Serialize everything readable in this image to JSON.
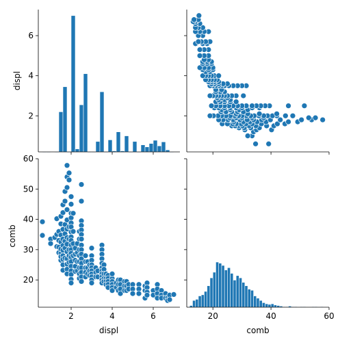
{
  "chart_data": {
    "type": "scatter",
    "kind": "pairplot",
    "variables": [
      "displ",
      "comb"
    ],
    "axis_labels": {
      "displ": "displ",
      "comb": "comb"
    },
    "color": "#1f77b4",
    "grid": false,
    "legend": "none",
    "displ_ticks": [
      2,
      4,
      6
    ],
    "displ_y_ticks": [
      2,
      4,
      6
    ],
    "comb_ticks": [
      20,
      40,
      60
    ],
    "comb_y_ticks": [
      20,
      30,
      40,
      50,
      60
    ],
    "displ_range": [
      0.4,
      7.3
    ],
    "displ_y_range": [
      0.2,
      7.3
    ],
    "comb_range": [
      11,
      60
    ],
    "comb_y_range": [
      11,
      60
    ],
    "displ_hist": {
      "bin_edges": [
        0.6,
        0.8,
        1.0,
        1.2,
        1.4,
        1.6,
        1.8,
        2.0,
        2.2,
        2.4,
        2.6,
        2.8,
        3.0,
        3.2,
        3.4,
        3.6,
        3.8,
        4.0,
        4.2,
        4.4,
        4.6,
        4.8,
        5.0,
        5.2,
        5.4,
        5.6,
        5.8,
        6.0,
        6.2,
        6.4,
        6.6,
        6.8,
        7.0
      ],
      "values": [
        0.05,
        0.08,
        0.0,
        0.05,
        2.2,
        3.45,
        0.08,
        7.0,
        0.35,
        2.55,
        4.1,
        0.08,
        0.08,
        0.72,
        3.2,
        0.08,
        0.8,
        0.25,
        1.2,
        0.25,
        1.0,
        0.1,
        0.72,
        0.1,
        0.55,
        0.45,
        0.62,
        0.78,
        0.5,
        0.7,
        0.3,
        0.05
      ]
    },
    "comb_hist": {
      "bin_edges": [
        12,
        13,
        14,
        15,
        16,
        17,
        18,
        19,
        20,
        21,
        22,
        23,
        24,
        25,
        26,
        27,
        28,
        29,
        30,
        31,
        32,
        33,
        34,
        35,
        36,
        37,
        38,
        39,
        40,
        41,
        42,
        43,
        44,
        45,
        46,
        47,
        48,
        49,
        50,
        51,
        52,
        53,
        54,
        55,
        56,
        57,
        58
      ],
      "values": [
        3,
        12,
        14,
        20,
        22,
        28,
        38,
        52,
        62,
        80,
        78,
        74,
        66,
        70,
        60,
        48,
        56,
        52,
        44,
        38,
        32,
        30,
        20,
        16,
        12,
        8,
        6,
        5,
        6,
        4,
        3,
        2,
        1,
        1,
        2,
        1,
        1,
        0,
        1,
        1,
        0,
        0,
        1,
        1,
        0,
        1
      ],
      "count_max": 80
    },
    "points": [
      [
        0.6,
        39.2
      ],
      [
        0.6,
        34.7
      ],
      [
        1.0,
        33.5
      ],
      [
        1.0,
        32.0
      ],
      [
        1.2,
        34.0
      ],
      [
        1.3,
        35.0
      ],
      [
        1.3,
        40.2
      ],
      [
        1.3,
        31.0
      ],
      [
        1.4,
        36.0
      ],
      [
        1.4,
        33.0
      ],
      [
        1.4,
        30.8
      ],
      [
        1.4,
        29.0
      ],
      [
        1.5,
        38.5
      ],
      [
        1.5,
        41.0
      ],
      [
        1.5,
        34.8
      ],
      [
        1.5,
        32.5
      ],
      [
        1.5,
        28.8
      ],
      [
        1.5,
        30.2
      ],
      [
        1.5,
        26.5
      ],
      [
        1.5,
        27.7
      ],
      [
        1.6,
        42.2
      ],
      [
        1.6,
        44.8
      ],
      [
        1.6,
        36.7
      ],
      [
        1.6,
        33.5
      ],
      [
        1.6,
        31.4
      ],
      [
        1.6,
        29.8
      ],
      [
        1.6,
        28.0
      ],
      [
        1.6,
        26.8
      ],
      [
        1.6,
        25.0
      ],
      [
        1.6,
        23.2
      ],
      [
        1.7,
        46.0
      ],
      [
        1.7,
        49.2
      ],
      [
        1.7,
        38.3
      ],
      [
        1.7,
        35.2
      ],
      [
        1.7,
        32.8
      ],
      [
        1.7,
        30.5
      ],
      [
        1.7,
        27.2
      ],
      [
        1.8,
        57.8
      ],
      [
        1.8,
        54.0
      ],
      [
        1.8,
        50.5
      ],
      [
        1.8,
        43.2
      ],
      [
        1.8,
        39.8
      ],
      [
        1.8,
        36.8
      ],
      [
        1.8,
        34.0
      ],
      [
        1.8,
        31.8
      ],
      [
        1.8,
        29.3
      ],
      [
        1.8,
        27.0
      ],
      [
        1.8,
        25.2
      ],
      [
        1.8,
        23.5
      ],
      [
        1.8,
        22.0
      ],
      [
        1.9,
        55.3
      ],
      [
        1.9,
        53.0
      ],
      [
        1.9,
        37.5
      ],
      [
        1.9,
        33.5
      ],
      [
        1.9,
        30.0
      ],
      [
        1.9,
        28.0
      ],
      [
        1.9,
        25.8
      ],
      [
        2.0,
        47.5
      ],
      [
        2.0,
        45.0
      ],
      [
        2.0,
        42.0
      ],
      [
        2.0,
        40.5
      ],
      [
        2.0,
        38.8
      ],
      [
        2.0,
        37.5
      ],
      [
        2.0,
        35.8
      ],
      [
        2.0,
        34.2
      ],
      [
        2.0,
        33.0
      ],
      [
        2.0,
        31.5
      ],
      [
        2.0,
        30.0
      ],
      [
        2.0,
        28.8
      ],
      [
        2.0,
        27.5
      ],
      [
        2.0,
        26.0
      ],
      [
        2.0,
        24.5
      ],
      [
        2.0,
        23.0
      ],
      [
        2.0,
        21.8
      ],
      [
        2.0,
        20.2
      ],
      [
        2.0,
        19.0
      ],
      [
        2.1,
        42.0
      ],
      [
        2.1,
        36.0
      ],
      [
        2.1,
        32.0
      ],
      [
        2.1,
        28.0
      ],
      [
        2.2,
        30.5
      ],
      [
        2.2,
        28.5
      ],
      [
        2.2,
        26.5
      ],
      [
        2.2,
        24.5
      ],
      [
        2.2,
        22.8
      ],
      [
        2.3,
        32.0
      ],
      [
        2.3,
        29.0
      ],
      [
        2.3,
        26.0
      ],
      [
        2.3,
        23.0
      ],
      [
        2.4,
        36.0
      ],
      [
        2.4,
        33.5
      ],
      [
        2.4,
        30.0
      ],
      [
        2.4,
        28.0
      ],
      [
        2.4,
        26.0
      ],
      [
        2.4,
        24.0
      ],
      [
        2.4,
        22.0
      ],
      [
        2.4,
        20.5
      ],
      [
        2.5,
        51.5
      ],
      [
        2.5,
        46.0
      ],
      [
        2.5,
        39.5
      ],
      [
        2.5,
        38.0
      ],
      [
        2.5,
        36.5
      ],
      [
        2.5,
        35.0
      ],
      [
        2.5,
        33.5
      ],
      [
        2.5,
        31.5
      ],
      [
        2.5,
        30.0
      ],
      [
        2.5,
        28.5
      ],
      [
        2.5,
        27.0
      ],
      [
        2.5,
        25.5
      ],
      [
        2.5,
        24.0
      ],
      [
        2.5,
        22.5
      ],
      [
        2.5,
        21.0
      ],
      [
        2.5,
        19.5
      ],
      [
        2.7,
        28.0
      ],
      [
        2.7,
        26.0
      ],
      [
        2.7,
        24.0
      ],
      [
        2.7,
        22.5
      ],
      [
        2.7,
        21.0
      ],
      [
        2.8,
        26.0
      ],
      [
        2.8,
        24.0
      ],
      [
        2.8,
        22.0
      ],
      [
        2.9,
        25.0
      ],
      [
        2.9,
        23.0
      ],
      [
        2.9,
        21.5
      ],
      [
        3.0,
        30.5
      ],
      [
        3.0,
        28.0
      ],
      [
        3.0,
        26.5
      ],
      [
        3.0,
        25.0
      ],
      [
        3.0,
        24.0
      ],
      [
        3.0,
        23.0
      ],
      [
        3.0,
        22.0
      ],
      [
        3.0,
        21.0
      ],
      [
        3.0,
        20.0
      ],
      [
        3.0,
        19.0
      ],
      [
        3.2,
        24.0
      ],
      [
        3.2,
        22.5
      ],
      [
        3.2,
        21.0
      ],
      [
        3.3,
        23.0
      ],
      [
        3.3,
        21.0
      ],
      [
        3.5,
        31.5
      ],
      [
        3.5,
        30.0
      ],
      [
        3.5,
        28.5
      ],
      [
        3.5,
        27.0
      ],
      [
        3.5,
        25.5
      ],
      [
        3.5,
        24.0
      ],
      [
        3.5,
        23.0
      ],
      [
        3.5,
        22.0
      ],
      [
        3.5,
        21.0
      ],
      [
        3.5,
        20.0
      ],
      [
        3.5,
        19.0
      ],
      [
        3.6,
        25.0
      ],
      [
        3.6,
        23.5
      ],
      [
        3.6,
        22.0
      ],
      [
        3.6,
        20.5
      ],
      [
        3.6,
        19.5
      ],
      [
        3.7,
        22.0
      ],
      [
        3.7,
        20.5
      ],
      [
        3.7,
        19.5
      ],
      [
        3.7,
        18.5
      ],
      [
        3.8,
        21.5
      ],
      [
        3.8,
        20.5
      ],
      [
        3.8,
        19.5
      ],
      [
        3.8,
        18.5
      ],
      [
        3.8,
        17.5
      ],
      [
        4.0,
        20.5
      ],
      [
        4.0,
        19.5
      ],
      [
        4.0,
        18.5
      ],
      [
        4.0,
        17.5
      ],
      [
        4.0,
        16.5
      ],
      [
        4.0,
        22.0
      ],
      [
        4.2,
        19.0
      ],
      [
        4.2,
        17.5
      ],
      [
        4.3,
        20.0
      ],
      [
        4.3,
        18.5
      ],
      [
        4.3,
        16.5
      ],
      [
        4.4,
        20.0
      ],
      [
        4.4,
        18.5
      ],
      [
        4.4,
        17.0
      ],
      [
        4.4,
        15.5
      ],
      [
        4.6,
        19.5
      ],
      [
        4.6,
        18.0
      ],
      [
        4.6,
        16.5
      ],
      [
        4.7,
        19.5
      ],
      [
        4.7,
        18.0
      ],
      [
        4.7,
        16.5
      ],
      [
        4.8,
        18.5
      ],
      [
        4.8,
        17.0
      ],
      [
        5.0,
        18.5
      ],
      [
        5.0,
        17.0
      ],
      [
        5.0,
        15.5
      ],
      [
        5.3,
        18.5
      ],
      [
        5.3,
        17.0
      ],
      [
        5.3,
        15.5
      ],
      [
        5.6,
        18.0
      ],
      [
        5.6,
        16.5
      ],
      [
        5.6,
        14.0
      ],
      [
        5.7,
        19.0
      ],
      [
        5.7,
        17.5
      ],
      [
        5.7,
        16.0
      ],
      [
        5.7,
        15.0
      ],
      [
        6.0,
        16.5
      ],
      [
        6.0,
        15.0
      ],
      [
        6.2,
        18.5
      ],
      [
        6.2,
        17.0
      ],
      [
        6.2,
        15.5
      ],
      [
        6.2,
        14.0
      ],
      [
        6.4,
        16.5
      ],
      [
        6.4,
        15.0
      ],
      [
        6.4,
        14.0
      ],
      [
        6.6,
        15.5
      ],
      [
        6.6,
        14.0
      ],
      [
        6.7,
        14.0
      ],
      [
        6.7,
        13.2
      ],
      [
        6.8,
        15.0
      ],
      [
        6.8,
        13.5
      ],
      [
        7.0,
        15.2
      ]
    ]
  }
}
